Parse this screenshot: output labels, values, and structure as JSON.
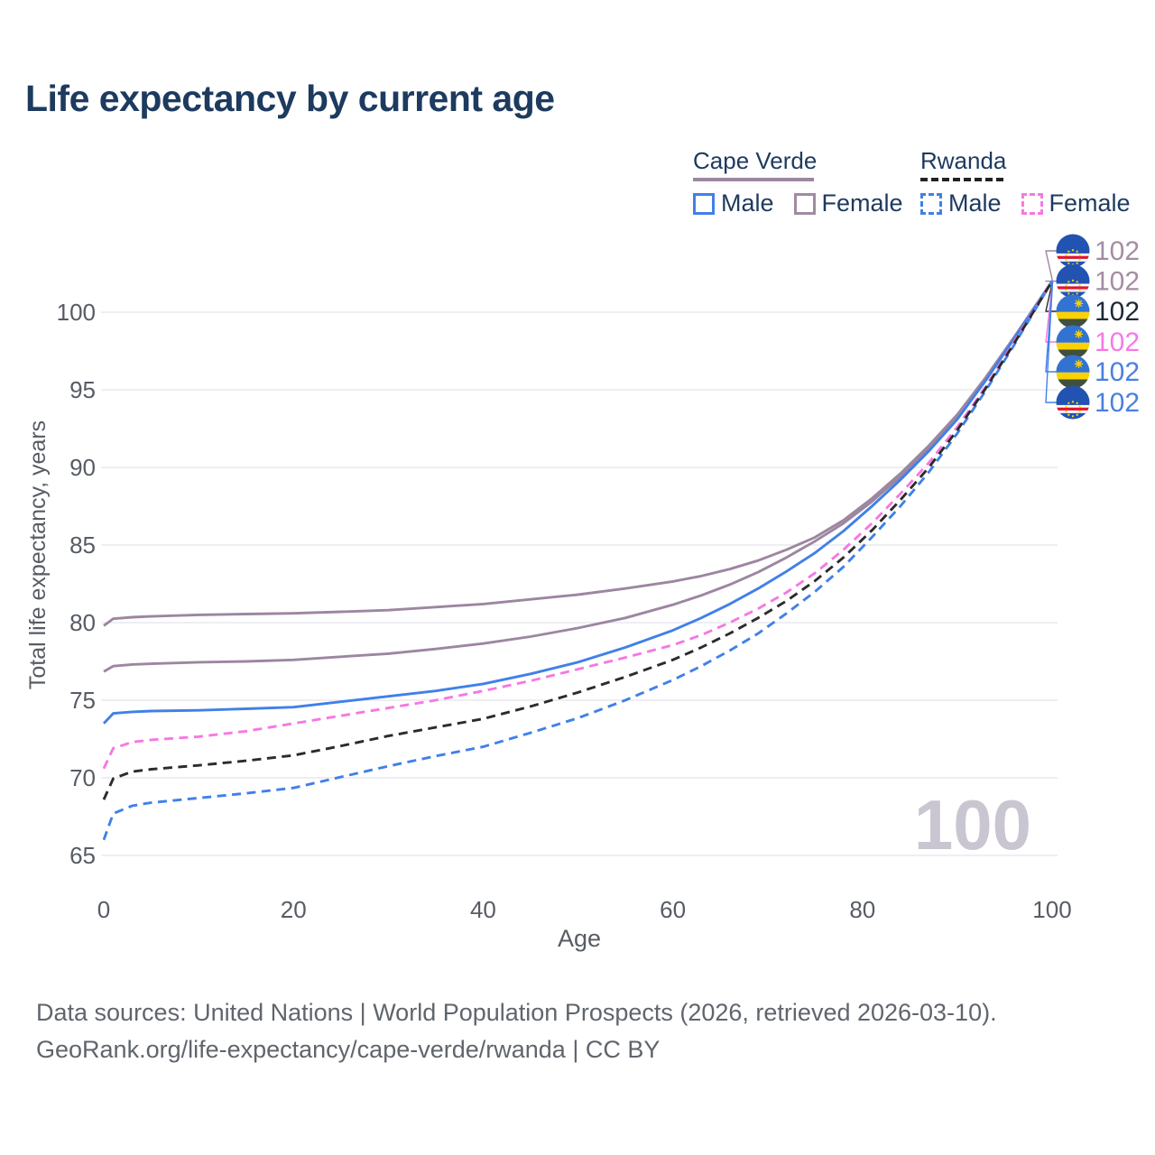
{
  "title": "Life expectancy by current age",
  "legend": {
    "groups": [
      {
        "country": "Cape Verde",
        "line_style": "solid",
        "underline_color": "#9c86a0",
        "items": [
          {
            "label": "Male",
            "color": "#4080e8",
            "dashed": false
          },
          {
            "label": "Female",
            "color": "#a18aa4",
            "dashed": false
          }
        ]
      },
      {
        "country": "Rwanda",
        "line_style": "dashed",
        "underline_color": "#222222",
        "items": [
          {
            "label": "Male",
            "color": "#4080e8",
            "dashed": true
          },
          {
            "label": "Female",
            "color": "#f678e2",
            "dashed": true
          }
        ]
      }
    ]
  },
  "chart_data": {
    "type": "line",
    "title": "Life expectancy by current age",
    "xlabel": "Age",
    "ylabel": "Total life expectancy, years",
    "x_ticks": [
      0,
      20,
      40,
      60,
      80,
      100
    ],
    "y_ticks": [
      65,
      70,
      75,
      80,
      85,
      90,
      95,
      100
    ],
    "xlim": [
      0,
      100
    ],
    "ylim": [
      63.5,
      105
    ],
    "grid": "horizontal",
    "watermark": "100",
    "x": [
      0,
      1,
      3,
      5,
      10,
      15,
      20,
      25,
      30,
      35,
      40,
      45,
      50,
      55,
      60,
      63,
      66,
      69,
      72,
      75,
      78,
      81,
      84,
      87,
      90,
      93,
      96,
      100
    ],
    "series": [
      {
        "name": "Cape Verde Female",
        "country": "Cape Verde",
        "sex": "Female",
        "color": "#9c86a0",
        "dashed": false,
        "values": [
          79.8,
          80.25,
          80.35,
          80.4,
          80.5,
          80.55,
          80.6,
          80.7,
          80.8,
          81.0,
          81.2,
          81.5,
          81.8,
          82.2,
          82.65,
          83.0,
          83.45,
          84.0,
          84.7,
          85.5,
          86.6,
          88.0,
          89.6,
          91.4,
          93.4,
          95.8,
          98.4,
          102
        ]
      },
      {
        "name": "Cape Verde Both sexes",
        "country": "Cape Verde",
        "sex": "Both",
        "color": "#9c86a0",
        "dashed": false,
        "values": [
          76.85,
          77.2,
          77.3,
          77.35,
          77.45,
          77.5,
          77.6,
          77.8,
          78.0,
          78.3,
          78.65,
          79.1,
          79.65,
          80.3,
          81.15,
          81.75,
          82.45,
          83.25,
          84.2,
          85.25,
          86.4,
          87.8,
          89.4,
          91.2,
          93.25,
          95.7,
          98.35,
          102
        ]
      },
      {
        "name": "Cape Verde Male",
        "country": "Cape Verde",
        "sex": "Male",
        "color": "#4080e8",
        "dashed": false,
        "values": [
          73.5,
          74.15,
          74.25,
          74.3,
          74.35,
          74.45,
          74.55,
          74.9,
          75.25,
          75.6,
          76.05,
          76.7,
          77.45,
          78.4,
          79.5,
          80.3,
          81.2,
          82.2,
          83.3,
          84.5,
          85.9,
          87.5,
          89.2,
          91.05,
          93.1,
          95.6,
          98.3,
          102
        ]
      },
      {
        "name": "Rwanda Male",
        "country": "Rwanda",
        "sex": "Male",
        "color": "#4080e8",
        "dashed": true,
        "values": [
          66.0,
          67.7,
          68.2,
          68.4,
          68.7,
          69.0,
          69.35,
          70.05,
          70.75,
          71.4,
          72.0,
          72.9,
          73.85,
          75.0,
          76.3,
          77.2,
          78.2,
          79.3,
          80.6,
          82.0,
          83.6,
          85.5,
          87.5,
          89.7,
          92.2,
          94.95,
          97.9,
          102
        ]
      },
      {
        "name": "Rwanda Female",
        "country": "Rwanda",
        "sex": "Female",
        "color": "#f678e2",
        "dashed": true,
        "values": [
          70.6,
          71.9,
          72.3,
          72.45,
          72.65,
          73.0,
          73.5,
          74.0,
          74.5,
          75.0,
          75.6,
          76.25,
          77.0,
          77.75,
          78.55,
          79.2,
          80.0,
          80.9,
          81.95,
          83.2,
          84.7,
          86.4,
          88.3,
          90.3,
          92.6,
          95.2,
          98.1,
          102
        ]
      },
      {
        "name": "Rwanda Both sexes",
        "country": "Rwanda",
        "sex": "Both",
        "color": "#2b2b2b",
        "dashed": true,
        "values": [
          68.6,
          69.95,
          70.4,
          70.55,
          70.8,
          71.1,
          71.45,
          72.05,
          72.7,
          73.25,
          73.8,
          74.6,
          75.5,
          76.5,
          77.6,
          78.4,
          79.3,
          80.3,
          81.4,
          82.7,
          84.2,
          85.95,
          87.9,
          90.0,
          92.4,
          95.1,
          98.0,
          102
        ]
      }
    ],
    "end_labels": [
      {
        "flag": "cape-verde",
        "value": "102",
        "color": "#a48da3",
        "line_color": "#9c86a0",
        "series": "Cape Verde Female"
      },
      {
        "flag": "cape-verde",
        "value": "102",
        "color": "#a48da3",
        "line_color": "#9c86a0",
        "series": "Cape Verde Both sexes"
      },
      {
        "flag": "rwanda",
        "value": "102",
        "color": "#1f2937",
        "line_color": "#2b2b2b",
        "series": "Rwanda Both sexes"
      },
      {
        "flag": "rwanda",
        "value": "102",
        "color": "#f57ae5",
        "line_color": "#f678e2",
        "series": "Rwanda Female"
      },
      {
        "flag": "rwanda",
        "value": "102",
        "color": "#4a80e0",
        "line_color": "#4080e8",
        "series": "Rwanda Male"
      },
      {
        "flag": "cape-verde",
        "value": "102",
        "color": "#4a80e0",
        "line_color": "#4080e8",
        "series": "Cape Verde Male"
      }
    ],
    "colors": {
      "grid": "#e9e9ef",
      "tick_text": "#575c64",
      "watermark": "#cac6d1"
    }
  },
  "footer": {
    "line1": "Data sources: United Nations | World Population Prospects (2026, retrieved 2026-03-10).",
    "line2": "GeoRank.org/life-expectancy/cape-verde/rwanda | CC BY"
  }
}
